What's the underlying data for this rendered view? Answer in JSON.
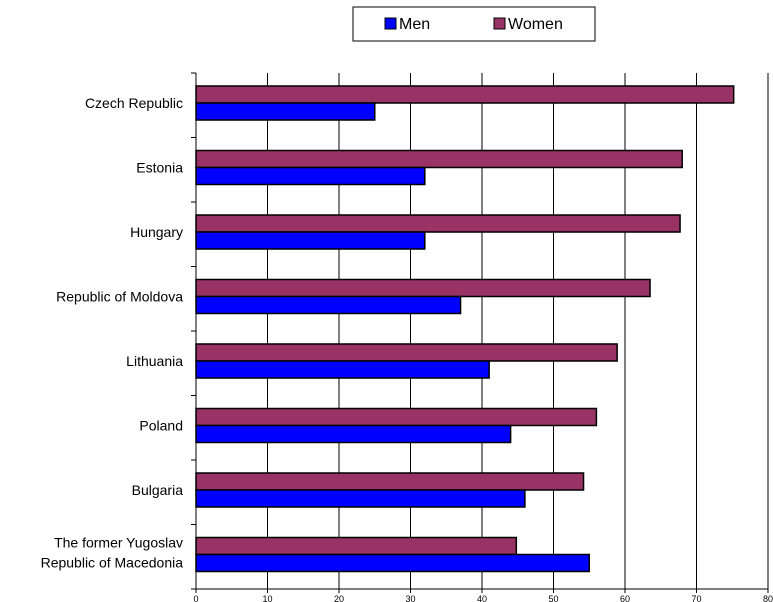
{
  "chart_data": {
    "type": "bar",
    "orientation": "horizontal",
    "title": "",
    "xlabel": "",
    "ylabel": "",
    "categories": [
      [
        "Czech Republic"
      ],
      [
        "Estonia"
      ],
      [
        "Hungary"
      ],
      [
        "Republic of Moldova"
      ],
      [
        "Lithuania"
      ],
      [
        "Poland"
      ],
      [
        "Bulgaria"
      ],
      [
        "The former Yugoslav",
        "Republic of Macedonia"
      ]
    ],
    "series": [
      {
        "name": "Women",
        "color": "#993366",
        "values": [
          75.2,
          68.0,
          67.7,
          63.5,
          58.9,
          56.0,
          54.2,
          44.8
        ]
      },
      {
        "name": "Men",
        "color": "#0000ff",
        "values": [
          25.0,
          32.0,
          32.0,
          37.0,
          41.0,
          44.0,
          46.0,
          55.0
        ]
      }
    ],
    "xlim": [
      0,
      80
    ],
    "xticks": [
      "0",
      "10",
      "20",
      "30",
      "40",
      "50",
      "60",
      "70",
      "80"
    ],
    "grid": "vertical",
    "legend": {
      "placement": "top",
      "entries": [
        "Men",
        "Women"
      ]
    }
  }
}
